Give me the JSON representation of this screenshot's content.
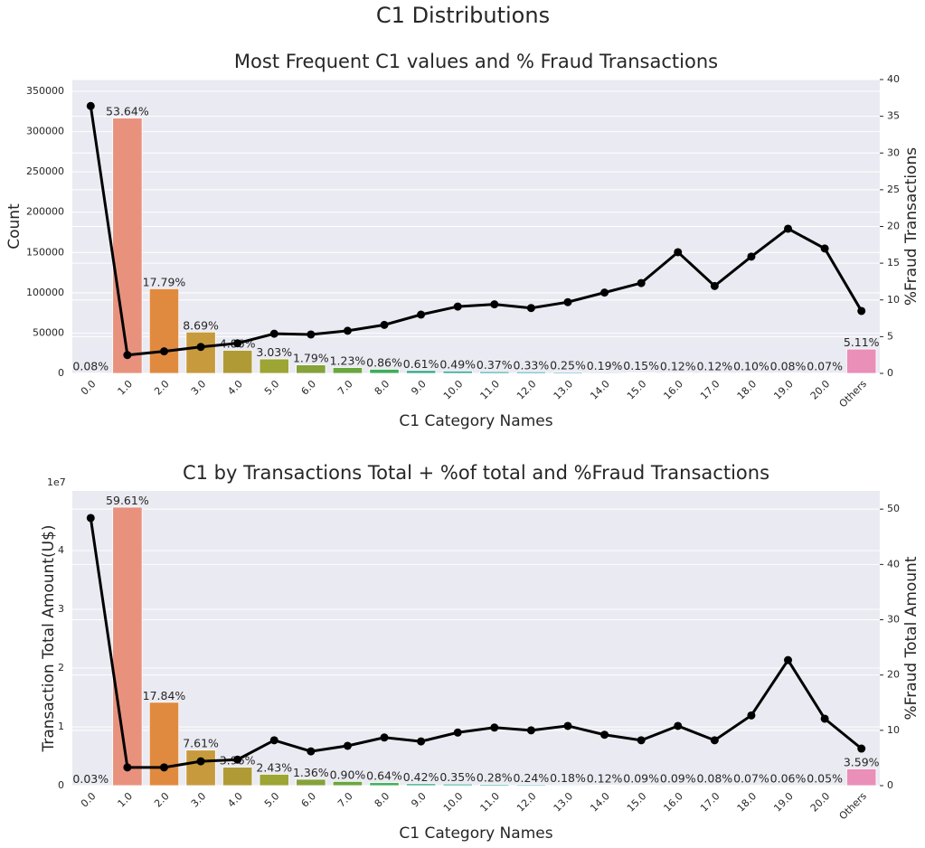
{
  "title": "C1 Distributions",
  "chart_data": [
    {
      "type": "bar_line",
      "title": "Most Frequent C1 values and % Fraud Transactions",
      "xlabel": "C1 Category Names",
      "ylabel": "Count",
      "y2label": "%Fraud Transactions",
      "categories": [
        "0.0",
        "1.0",
        "2.0",
        "3.0",
        "4.0",
        "5.0",
        "6.0",
        "7.0",
        "8.0",
        "9.0",
        "10.0",
        "11.0",
        "12.0",
        "13.0",
        "14.0",
        "15.0",
        "16.0",
        "17.0",
        "18.0",
        "19.0",
        "20.0",
        "Others"
      ],
      "ylim": [
        0,
        364600
      ],
      "yticks": [
        0,
        50000,
        100000,
        150000,
        200000,
        250000,
        300000,
        350000
      ],
      "y2lim": [
        0,
        40
      ],
      "y2ticks": [
        0,
        5,
        10,
        15,
        20,
        25,
        30,
        35,
        40
      ],
      "grid": true,
      "series": [
        {
          "mark": "bar",
          "colors": [
            "#ea8f8a",
            "#e8927e",
            "#e08a40",
            "#c79a3e",
            "#b09a35",
            "#9da534",
            "#86a23a",
            "#6aa73f",
            "#3fae5a",
            "#3aab86",
            "#3aa999",
            "#3ca6a8",
            "#3da4b5",
            "#41a2c4",
            "#5a9bd3",
            "#7d94dc",
            "#9b8ddf",
            "#b388dc",
            "#c884d2",
            "#dc83c2",
            "#e286b0",
            "#e98fb8"
          ],
          "values": [
            470,
            316800,
            105060,
            51318,
            28700,
            17893,
            10571,
            7264,
            5079,
            3602,
            2894,
            2185,
            1949,
            1476,
            1122,
            886,
            709,
            709,
            591,
            472,
            413,
            30177
          ]
        },
        {
          "mark": "text",
          "values": [
            0.08,
            53.64,
            17.79,
            8.69,
            4.86,
            3.03,
            1.79,
            1.23,
            0.86,
            0.61,
            0.49,
            0.37,
            0.33,
            0.25,
            0.19,
            0.15,
            0.12,
            0.12,
            0.1,
            0.08,
            0.07,
            5.11
          ],
          "value_labels": [
            "0.08%",
            "53.64%",
            "17.79%",
            "8.69%",
            "4.86%",
            "3.03%",
            "1.79%",
            "1.23%",
            "0.86%",
            "0.61%",
            "0.49%",
            "0.37%",
            "0.33%",
            "0.25%",
            "0.19%",
            "0.15%",
            "0.12%",
            "0.12%",
            "0.10%",
            "0.08%",
            "0.07%",
            "5.11%"
          ]
        },
        {
          "mark": "line",
          "axis": "y2",
          "color": "#000000",
          "values": [
            36.4,
            2.5,
            3.0,
            3.6,
            4.1,
            5.4,
            5.3,
            5.8,
            6.6,
            8.0,
            9.1,
            9.4,
            8.9,
            9.7,
            11.0,
            12.3,
            16.5,
            11.9,
            15.9,
            19.7,
            17.0,
            8.5
          ]
        }
      ]
    },
    {
      "type": "bar_line",
      "title": "C1 by Transactions Total + %of total and %Fraud Transactions",
      "xlabel": "C1 Category Names",
      "ylabel": "Transaction Total Amount(U$)",
      "y2label": "%Fraud Total Amount",
      "y_offset_text": "1e7",
      "categories": [
        "0.0",
        "1.0",
        "2.0",
        "3.0",
        "4.0",
        "5.0",
        "6.0",
        "7.0",
        "8.0",
        "9.0",
        "10.0",
        "11.0",
        "12.0",
        "13.0",
        "14.0",
        "15.0",
        "16.0",
        "17.0",
        "18.0",
        "19.0",
        "20.0",
        "Others"
      ],
      "ylim": [
        0,
        50150000
      ],
      "yticks": [
        0,
        {
          "value": 10000000,
          "label": "1"
        },
        {
          "value": 20000000,
          "label": "2"
        },
        {
          "value": 30000000,
          "label": "3"
        },
        {
          "value": 40000000,
          "label": "4"
        }
      ],
      "y2lim": [
        0,
        53.3
      ],
      "y2ticks": [
        0,
        10,
        20,
        30,
        40,
        50
      ],
      "grid": true,
      "series": [
        {
          "mark": "bar",
          "colors": [
            "#ea8f8a",
            "#e8927e",
            "#e08a40",
            "#c79a3e",
            "#b09a35",
            "#9da534",
            "#86a23a",
            "#6aa73f",
            "#3fae5a",
            "#3aab86",
            "#3aa999",
            "#3ca6a8",
            "#3da4b5",
            "#41a2c4",
            "#5a9bd3",
            "#7d94dc",
            "#9b8ddf",
            "#b388dc",
            "#c884d2",
            "#dc83c2",
            "#e286b0",
            "#e98fb8"
          ],
          "values": [
            23850,
            47390000,
            14183000,
            6050000,
            3148000,
            1932000,
            1081000,
            715500,
            508800,
            333900,
            278300,
            222600,
            190800,
            143100,
            95400,
            71550,
            71550,
            63600,
            55650,
            47700,
            39750,
            2854000
          ]
        },
        {
          "mark": "text",
          "values": [
            0.03,
            59.61,
            17.84,
            7.61,
            3.96,
            2.43,
            1.36,
            0.9,
            0.64,
            0.42,
            0.35,
            0.28,
            0.24,
            0.18,
            0.12,
            0.09,
            0.09,
            0.08,
            0.07,
            0.06,
            0.05,
            3.59
          ],
          "value_labels": [
            "0.03%",
            "59.61%",
            "17.84%",
            "7.61%",
            "3.96%",
            "2.43%",
            "1.36%",
            "0.90%",
            "0.64%",
            "0.42%",
            "0.35%",
            "0.28%",
            "0.24%",
            "0.18%",
            "0.12%",
            "0.09%",
            "0.09%",
            "0.08%",
            "0.07%",
            "0.06%",
            "0.05%",
            "3.59%"
          ]
        },
        {
          "mark": "line",
          "axis": "y2",
          "color": "#000000",
          "values": [
            48.4,
            3.3,
            3.3,
            4.4,
            4.7,
            8.2,
            6.2,
            7.2,
            8.7,
            8.0,
            9.6,
            10.5,
            10.0,
            10.8,
            9.2,
            8.2,
            10.8,
            8.2,
            12.7,
            22.7,
            12.1,
            6.7
          ]
        }
      ]
    }
  ]
}
